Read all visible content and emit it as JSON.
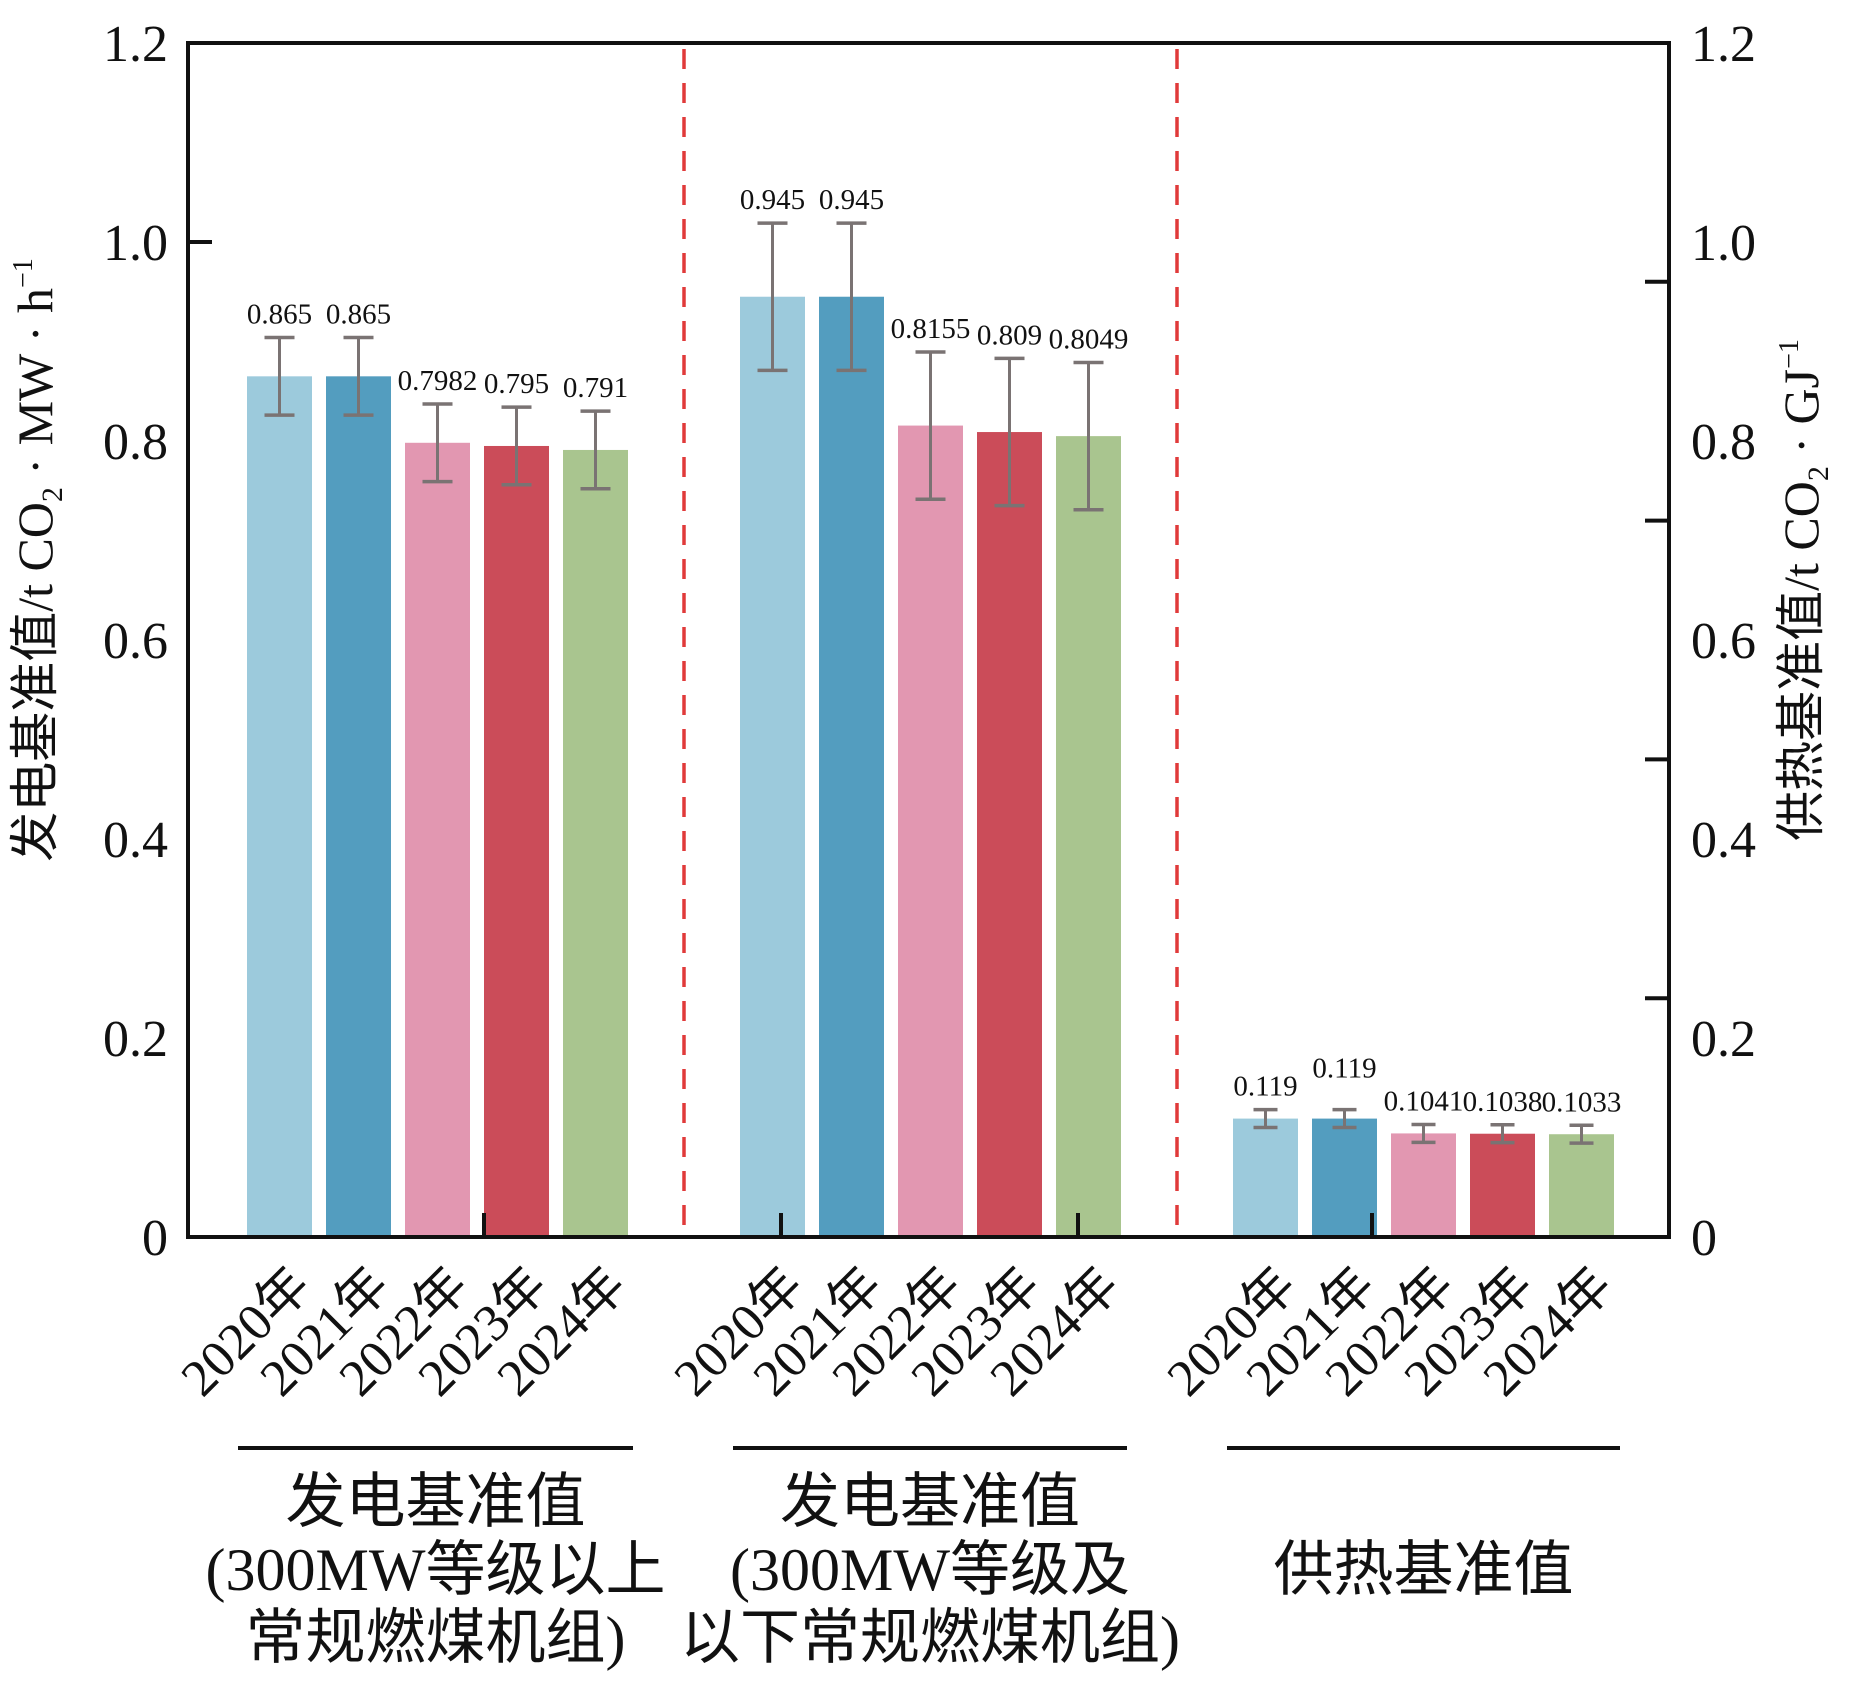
{
  "chart_data": {
    "type": "bar",
    "title": "",
    "ylabel_left": {
      "main": "发电基准值/t CO",
      "sub": "2",
      "tail": " · MW · h",
      "sup": "−1"
    },
    "ylabel_right": {
      "main": "供热基准值/t CO",
      "sub": "2",
      "tail": " · GJ",
      "sup": "−1"
    },
    "ylim": [
      0,
      1.2
    ],
    "yticks_left": [
      "0",
      "0.2",
      "0.4",
      "0.6",
      "0.8",
      "1.0",
      "1.2"
    ],
    "yticks_right": [
      "0",
      "0.2",
      "0.4",
      "0.6",
      "0.8",
      "1.0",
      "1.2"
    ],
    "ytick_values": [
      0,
      0.2,
      0.4,
      0.6,
      0.8,
      1.0,
      1.2
    ],
    "right_axis_tick_marks": [
      0.24,
      0.48,
      0.72,
      0.96
    ],
    "left_axis_tick_marks": [
      1.0
    ],
    "grid": false,
    "legend": "none",
    "categories": [
      "2020年",
      "2021年",
      "2022年",
      "2023年",
      "2024年"
    ],
    "series_colors": [
      "#9ccadc",
      "#539dbf",
      "#e297b1",
      "#cb4c59",
      "#a9c58f"
    ],
    "error_color": "#7a7373",
    "separator_color": "#e03a3a",
    "groups": [
      {
        "name": "发电基准值 (300MW等级以上常规燃煤机组)",
        "label_lines": [
          "发电基准值",
          "(300MW等级以上",
          "常规燃煤机组)"
        ],
        "axis": "left",
        "values": [
          0.865,
          0.865,
          0.7982,
          0.795,
          0.791
        ],
        "value_labels": [
          "0.865",
          "0.865",
          "0.7982",
          "0.795",
          "0.791"
        ],
        "errors": [
          0.039,
          0.039,
          0.039,
          0.039,
          0.039
        ]
      },
      {
        "name": "发电基准值 (300MW等级及以下常规燃煤机组)",
        "label_lines": [
          "发电基准值",
          "(300MW等级及",
          "以下常规燃煤机组)"
        ],
        "axis": "left",
        "values": [
          0.945,
          0.945,
          0.8155,
          0.809,
          0.8049
        ],
        "value_labels": [
          "0.945",
          "0.945",
          "0.8155",
          "0.809",
          "0.8049"
        ],
        "errors": [
          0.074,
          0.074,
          0.074,
          0.074,
          0.074
        ]
      },
      {
        "name": "供热基准值",
        "label_lines": [
          "供热基准值"
        ],
        "axis": "right",
        "values": [
          0.119,
          0.119,
          0.1041,
          0.1038,
          0.1033
        ],
        "value_labels": [
          "0.119",
          "0.119",
          "0.1041",
          "0.1038",
          "0.1033"
        ],
        "errors": [
          0.009,
          0.009,
          0.009,
          0.009,
          0.009
        ]
      }
    ]
  }
}
